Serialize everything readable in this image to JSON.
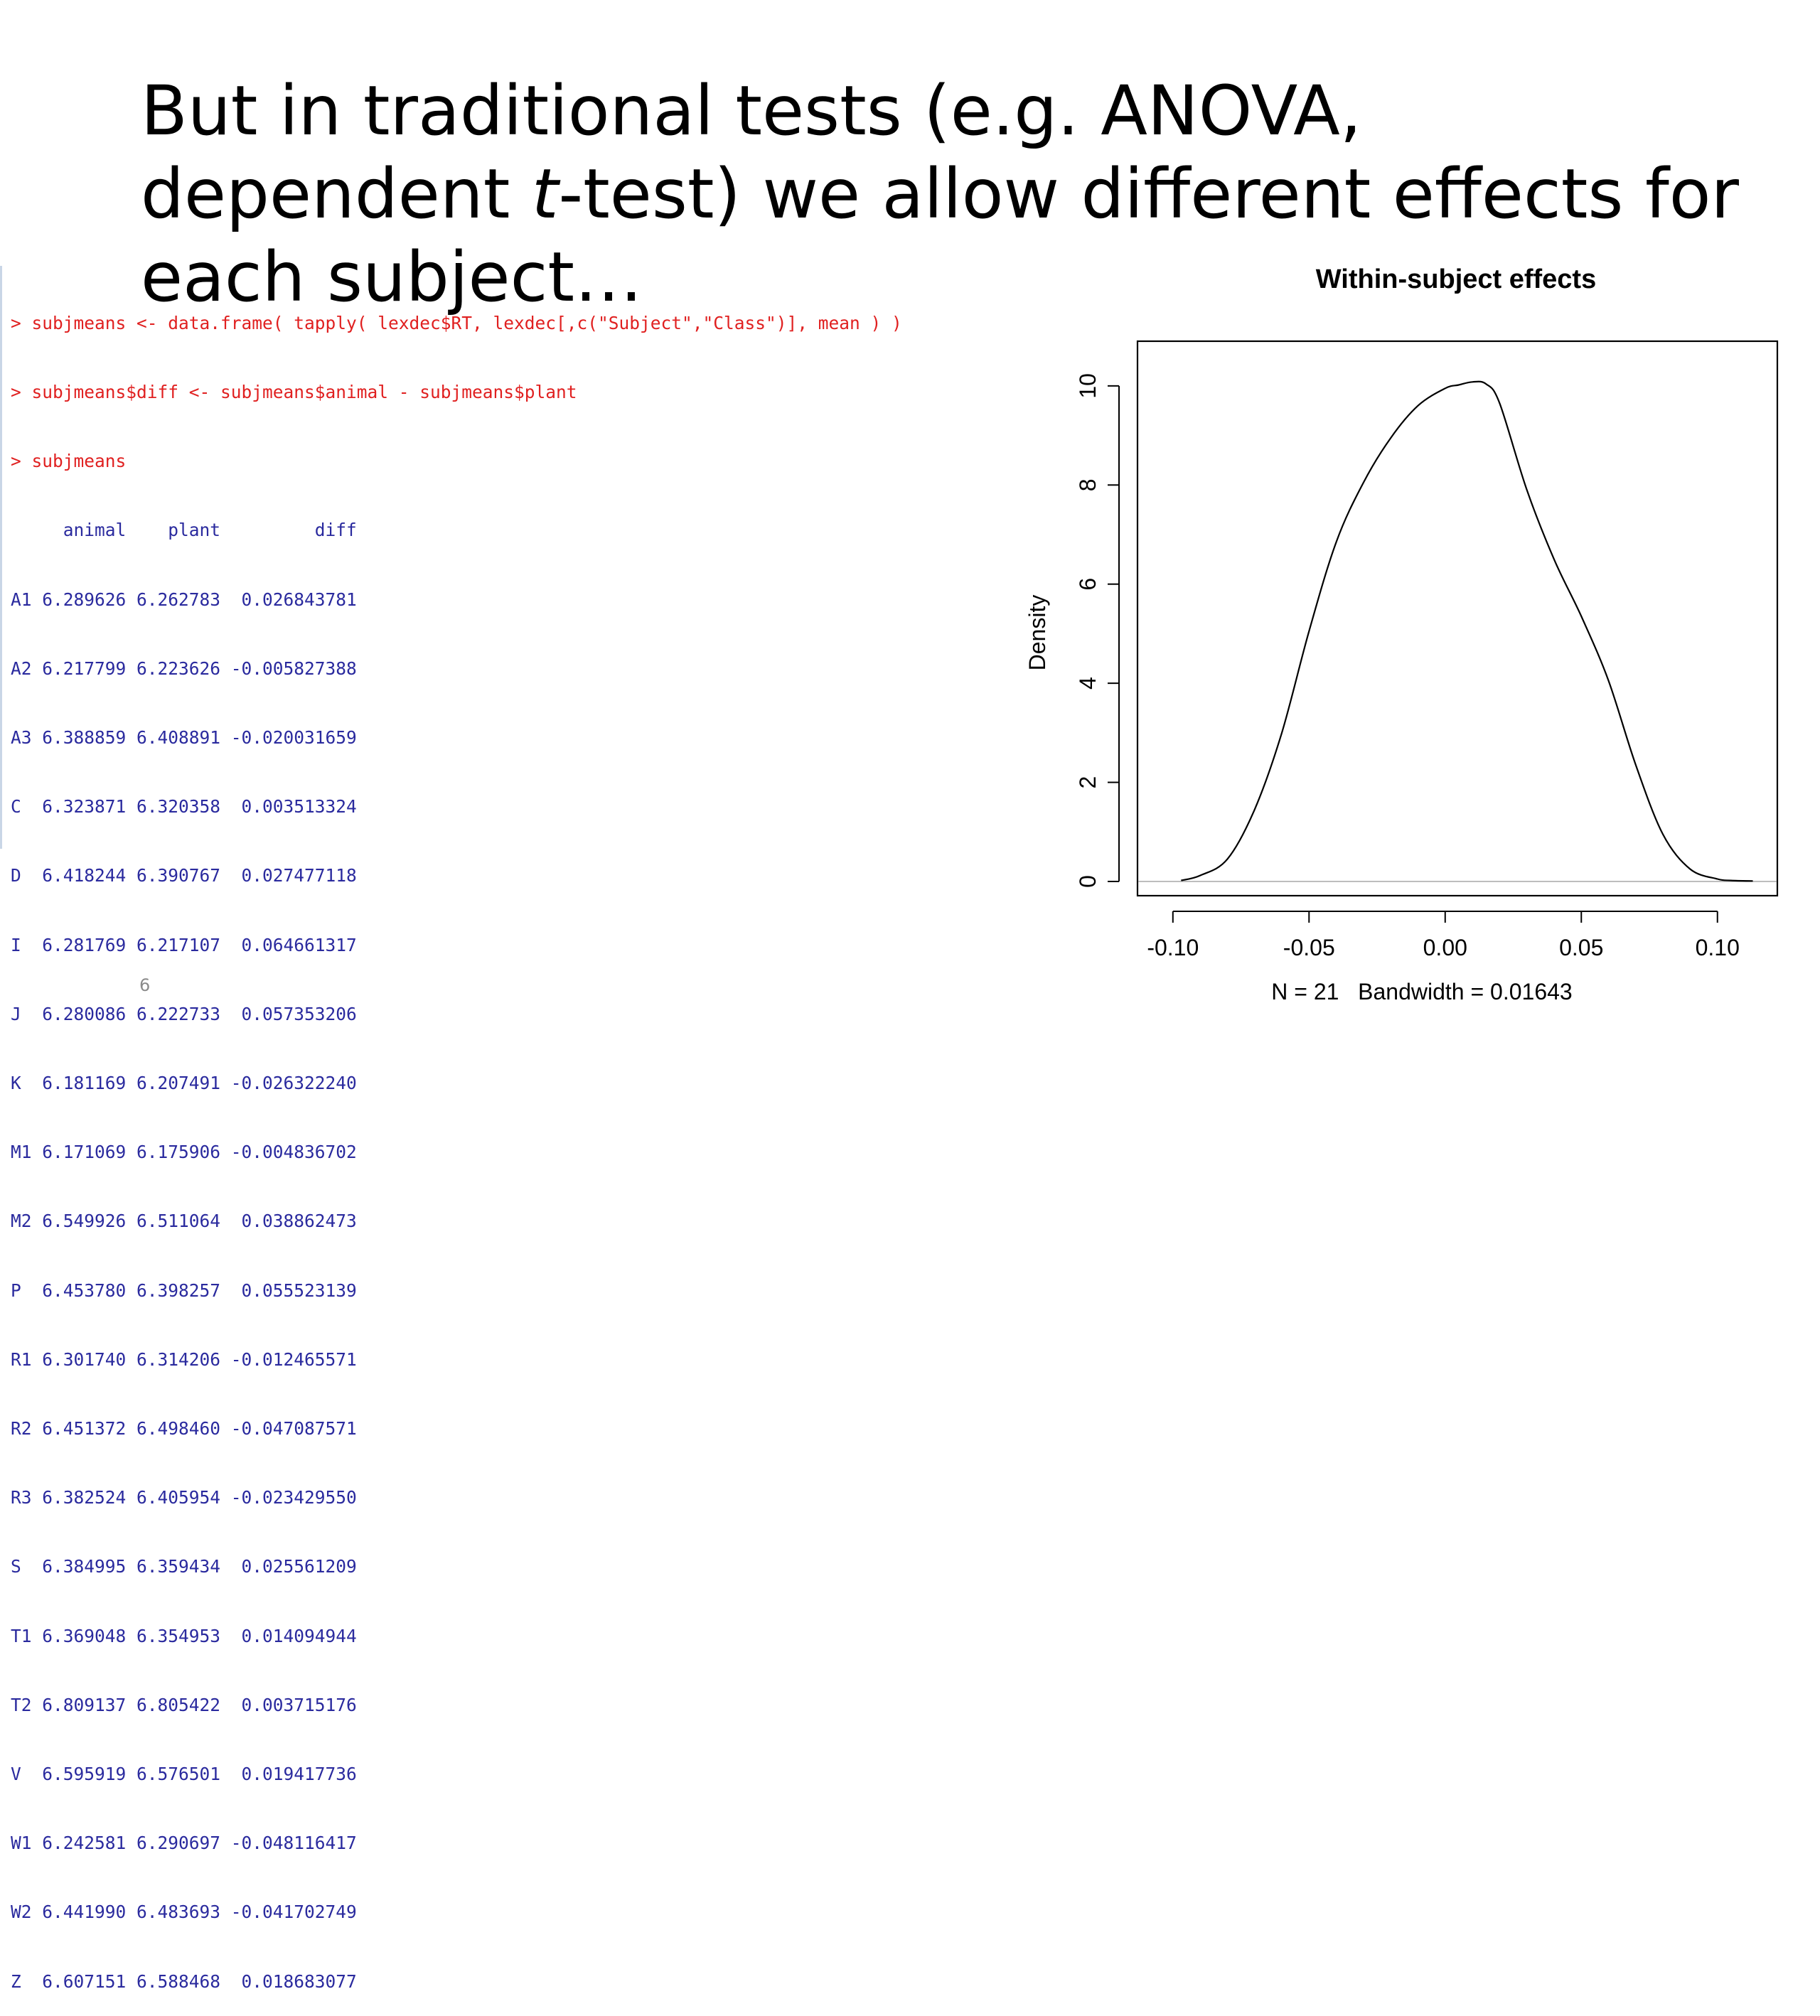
{
  "slide": {
    "title_before_italic": "But in traditional tests (e.g. ANOVA, dependent ",
    "title_italic": "t",
    "title_after_italic": "-test) we allow different effects for each subject…",
    "page_number": "6"
  },
  "console": {
    "commands": [
      "> subjmeans <- data.frame( tapply( lexdec$RT, lexdec[,c(\"Subject\",\"Class\")], mean ) )",
      "> subjmeans$diff <- subjmeans$animal - subjmeans$plant",
      "> subjmeans"
    ],
    "output_lines": [
      "     animal    plant         diff",
      "A1 6.289626 6.262783  0.026843781",
      "A2 6.217799 6.223626 -0.005827388",
      "A3 6.388859 6.408891 -0.020031659",
      "C  6.323871 6.320358  0.003513324",
      "D  6.418244 6.390767  0.027477118",
      "I  6.281769 6.217107  0.064661317",
      "J  6.280086 6.222733  0.057353206",
      "K  6.181169 6.207491 -0.026322240",
      "M1 6.171069 6.175906 -0.004836702",
      "M2 6.549926 6.511064  0.038862473",
      "P  6.453780 6.398257  0.055523139",
      "R1 6.301740 6.314206 -0.012465571",
      "R2 6.451372 6.498460 -0.047087571",
      "R3 6.382524 6.405954 -0.023429550",
      "S  6.384995 6.359434  0.025561209",
      "T1 6.369048 6.354953  0.014094944",
      "T2 6.809137 6.805422  0.003715176",
      "V  6.595919 6.576501  0.019417736",
      "W1 6.242581 6.290697 -0.048116417",
      "W2 6.441990 6.483693 -0.041702749",
      "Z  6.607151 6.588468  0.018683077"
    ]
  },
  "chart_data": {
    "type": "line",
    "title": "Within-subject effects",
    "xlabel": "N = 21   Bandwidth = 0.01643",
    "ylabel": "Density",
    "xlim": [
      -0.113,
      0.122
    ],
    "ylim": [
      0,
      10.5
    ],
    "x_ticks": [
      -0.1,
      -0.05,
      0.0,
      0.05,
      0.1
    ],
    "x_tick_labels": [
      "-0.10",
      "-0.05",
      "0.00",
      "0.05",
      "0.10"
    ],
    "y_ticks": [
      0,
      2,
      4,
      6,
      8,
      10
    ],
    "y_tick_labels": [
      "0",
      "2",
      "4",
      "6",
      "8",
      "10"
    ],
    "baseline_y": 0,
    "series": [
      {
        "x": [
          -0.097,
          -0.09,
          -0.08,
          -0.07,
          -0.06,
          -0.05,
          -0.04,
          -0.03,
          -0.02,
          -0.01,
          0.0,
          0.005,
          0.01,
          0.015,
          0.02,
          0.03,
          0.04,
          0.05,
          0.06,
          0.07,
          0.08,
          0.09,
          0.1,
          0.105,
          0.113
        ],
        "y": [
          0.02,
          0.12,
          0.45,
          1.45,
          3.0,
          5.05,
          6.85,
          8.05,
          8.95,
          9.6,
          9.95,
          10.02,
          10.08,
          10.04,
          9.65,
          7.9,
          6.5,
          5.35,
          4.05,
          2.35,
          0.95,
          0.25,
          0.05,
          0.02,
          0.01
        ]
      }
    ],
    "colors": {
      "line": "#000000",
      "baseline": "#bdbdbd",
      "axes": "#000000"
    }
  }
}
